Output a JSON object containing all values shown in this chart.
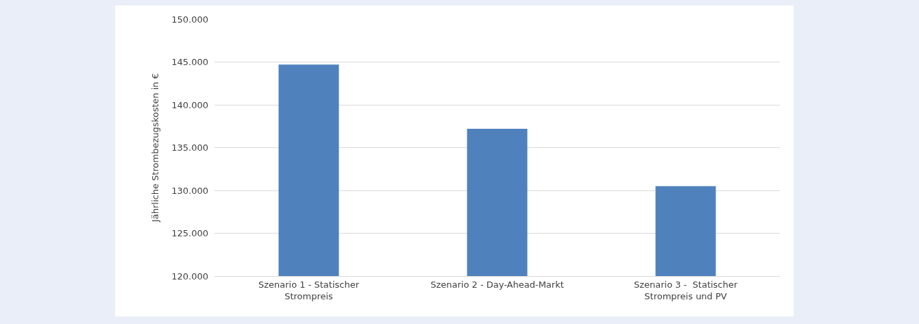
{
  "chart_data": {
    "type": "bar",
    "ylabel": "Jährliche Strombezugskosten in €",
    "categories": [
      "Szenario 1 - Statischer Strompreis",
      "Szenario 2 - Day-Ahead-Markt",
      "Szenario 3 -  Statischer Strompreis und PV"
    ],
    "values": [
      144700,
      137200,
      130500
    ],
    "color": "#4f81bd",
    "ylim": [
      120000,
      150000
    ],
    "yticks": [
      {
        "value": 120000,
        "label": "120.000"
      },
      {
        "value": 125000,
        "label": "125.000"
      },
      {
        "value": 130000,
        "label": "130.000"
      },
      {
        "value": 135000,
        "label": "135.000"
      },
      {
        "value": 140000,
        "label": "140.000"
      },
      {
        "value": 145000,
        "label": "145.000"
      },
      {
        "value": 150000,
        "label": "150.000"
      }
    ],
    "grid": "y",
    "legend": false
  }
}
